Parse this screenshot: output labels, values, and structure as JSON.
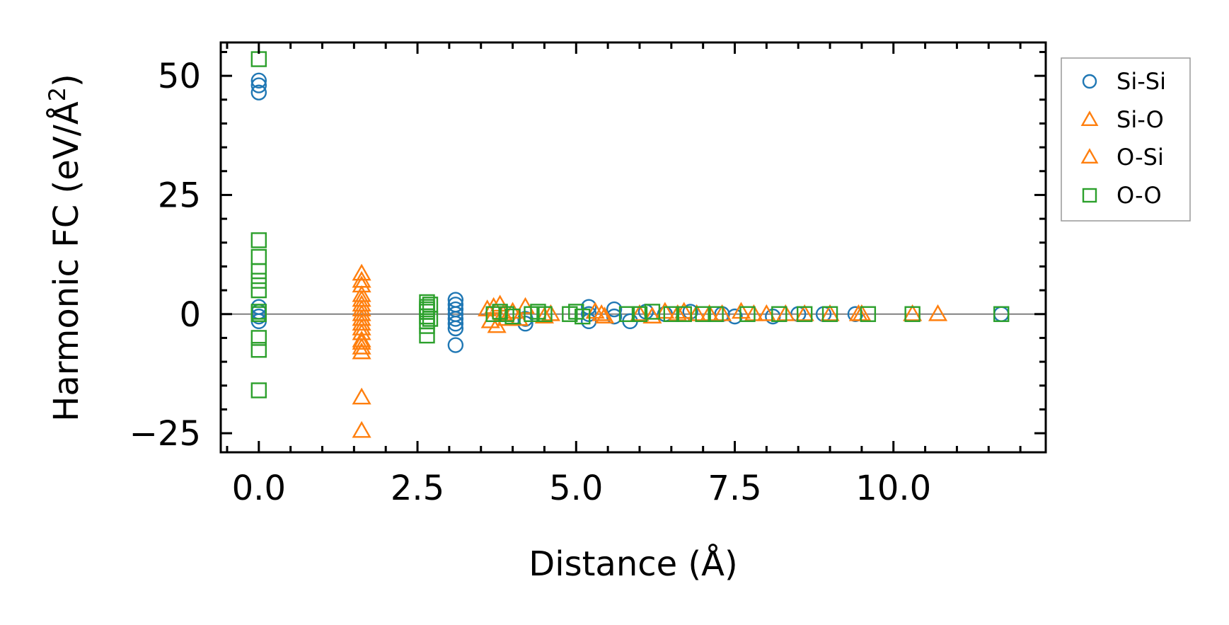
{
  "chart_data": {
    "type": "scatter",
    "title": "",
    "xlabel": "Distance (Å)",
    "ylabel_main": "Harmonic FC (eV/Å",
    "ylabel_sup": "2",
    "ylabel_close": ")",
    "xlim": [
      -0.6,
      12.4
    ],
    "ylim": [
      -29,
      57
    ],
    "xticks": [
      0.0,
      2.5,
      5.0,
      7.5,
      10.0
    ],
    "xtick_labels": [
      "0.0",
      "2.5",
      "5.0",
      "7.5",
      "10.0"
    ],
    "yticks": [
      -25,
      0,
      25,
      50
    ],
    "ytick_labels": [
      "−25",
      "0",
      "25",
      "50"
    ],
    "x_minor_step": 0.5,
    "y_minor_step": 5,
    "zero_line": true,
    "legend_position": "outside-top-right",
    "series": [
      {
        "name": "Si-Si",
        "marker": "circle",
        "color": "#1f77b4",
        "x": [
          0.0,
          0.0,
          0.0,
          0.0,
          0.0,
          0.0,
          0.0,
          3.1,
          3.1,
          3.1,
          3.1,
          3.1,
          3.1,
          3.1,
          3.1,
          4.2,
          4.2,
          5.2,
          5.2,
          5.2,
          5.6,
          5.6,
          5.85,
          6.1,
          6.4,
          6.8,
          7.3,
          7.5,
          8.1,
          8.5,
          8.9,
          9.4,
          11.7
        ],
        "y": [
          49,
          48,
          46.5,
          1.5,
          0.5,
          -0.5,
          -1.5,
          3,
          2,
          1,
          0,
          -1,
          -2,
          -3,
          -6.5,
          -1,
          -2,
          1.5,
          0,
          -1.5,
          1,
          -0.5,
          -1.5,
          0.5,
          0,
          0.5,
          0,
          -0.5,
          -0.5,
          0,
          0,
          0,
          0
        ]
      },
      {
        "name": "Si-O",
        "marker": "triangle",
        "color": "#ff7f0e",
        "x": [
          1.62,
          1.62,
          1.62,
          1.62,
          1.62,
          1.62,
          1.62,
          1.62,
          1.62,
          1.62,
          1.62,
          1.62,
          3.6,
          3.7,
          3.8,
          3.9,
          4.0,
          4.2,
          4.5,
          5.3,
          5.4,
          6.0,
          6.4,
          6.7,
          7.1,
          7.6,
          8.0,
          8.6,
          9.5,
          10.3,
          10.7
        ],
        "y": [
          8.5,
          7,
          4,
          2,
          0,
          -2,
          -4,
          -5.5,
          -7,
          -8,
          -17.5,
          -24.5,
          1,
          1.5,
          2,
          -1,
          0.5,
          1.5,
          -0.5,
          0.5,
          0,
          0,
          0.5,
          0.5,
          0,
          0.5,
          0,
          0,
          0,
          0,
          0
        ]
      },
      {
        "name": "O-Si",
        "marker": "triangle",
        "color": "#ff7f0e",
        "x": [
          1.62,
          1.62,
          1.62,
          1.62,
          1.62,
          1.62,
          3.65,
          3.75,
          3.85,
          4.1,
          4.6,
          5.45,
          6.2,
          6.6,
          6.9,
          7.3,
          7.8,
          8.3,
          9.0,
          9.45
        ],
        "y": [
          6,
          3,
          1,
          -1,
          -3,
          -6,
          -1.5,
          -2.5,
          0,
          -1,
          0,
          -0.5,
          -0.5,
          0,
          0,
          0,
          0,
          0,
          0,
          0
        ]
      },
      {
        "name": "O-O",
        "marker": "square",
        "color": "#2ca02c",
        "x": [
          0.0,
          0.0,
          0.0,
          0.0,
          0.0,
          0.0,
          0.0,
          0.0,
          0.0,
          0.0,
          0.0,
          2.65,
          2.65,
          2.65,
          2.65,
          2.65,
          2.65,
          2.65,
          2.65,
          2.7,
          2.7,
          3.7,
          3.8,
          3.9,
          4.0,
          4.3,
          4.4,
          4.5,
          4.9,
          5.0,
          5.1,
          5.8,
          6.0,
          6.2,
          6.5,
          6.7,
          7.0,
          7.2,
          7.7,
          8.2,
          8.6,
          9.0,
          9.6,
          10.3,
          11.7
        ],
        "y": [
          53.5,
          15.5,
          12,
          9,
          7,
          5,
          0,
          -5,
          -7.5,
          -16,
          0.5,
          2.5,
          1.5,
          0.5,
          -0.5,
          -1.5,
          -2.5,
          -4.5,
          1,
          2,
          -1,
          0,
          0.5,
          0,
          -0.5,
          0,
          0.5,
          0,
          0,
          0.5,
          -0.5,
          0,
          0,
          0.5,
          0,
          0,
          0,
          0,
          0,
          0,
          0,
          0,
          0,
          0,
          0
        ]
      }
    ]
  }
}
